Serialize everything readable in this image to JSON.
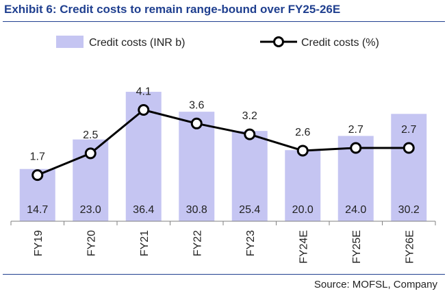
{
  "header": {
    "title": "Exhibit 6: Credit costs to remain range-bound over FY25-26E"
  },
  "footer": {
    "source": "Source: MOFSL, Company"
  },
  "colors": {
    "bar": "#c5c5f2",
    "line": "#000000",
    "marker_fill": "#ffffff",
    "title": "#1f3f8f"
  },
  "chart_data": {
    "type": "bar",
    "title": "",
    "xlabel": "",
    "ylabel": "",
    "categories": [
      "FY19",
      "FY20",
      "FY21",
      "FY22",
      "FY23",
      "FY24E",
      "FY25E",
      "FY26E"
    ],
    "series": [
      {
        "name": "Credit costs (INR b)",
        "type": "bar",
        "axis": "primary",
        "values": [
          14.7,
          23.0,
          36.4,
          30.8,
          25.4,
          20.0,
          24.0,
          30.2
        ],
        "labels": [
          "14.7",
          "23.0",
          "36.4",
          "30.8",
          "25.4",
          "20.0",
          "24.0",
          "30.2"
        ]
      },
      {
        "name": "Credit costs (%)",
        "type": "line",
        "axis": "secondary",
        "marker": "circle",
        "values": [
          1.7,
          2.5,
          4.1,
          3.6,
          3.2,
          2.6,
          2.7,
          2.7
        ],
        "labels": [
          "1.7",
          "2.5",
          "4.1",
          "3.6",
          "3.2",
          "2.6",
          "2.7",
          "2.7"
        ]
      }
    ],
    "ylim": [
      0,
      42
    ],
    "y2lim": [
      0,
      5.5
    ],
    "legend_position": "top",
    "grid": false
  }
}
